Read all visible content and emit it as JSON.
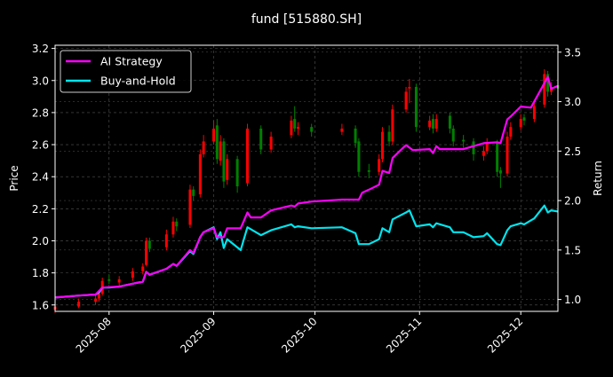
{
  "chart_data": {
    "type": "candlestick+line",
    "title": "fund [515880.SH]",
    "xlabel": "",
    "ylabel_left": "Price",
    "ylabel_right": "Return",
    "xlim": [
      "2025-07-16",
      "2025-12-12"
    ],
    "ylim_left": [
      1.56,
      3.22
    ],
    "ylim_right": [
      0.88,
      3.57
    ],
    "x_ticks": [
      {
        "date": "2025-08-01",
        "label": "2025-08"
      },
      {
        "date": "2025-09-01",
        "label": "2025-09"
      },
      {
        "date": "2025-10-01",
        "label": "2025-10"
      },
      {
        "date": "2025-11-01",
        "label": "2025-11"
      },
      {
        "date": "2025-12-01",
        "label": "2025-12"
      }
    ],
    "y_ticks_left": [
      "1.6",
      "1.8",
      "2.0",
      "2.2",
      "2.4",
      "2.6",
      "2.8",
      "3.0",
      "3.2"
    ],
    "y_ticks_right": [
      "1.0",
      "1.5",
      "2.0",
      "2.5",
      "3.0",
      "3.5"
    ],
    "grid": true,
    "legend_position": "top-left",
    "colors": {
      "up": "#ff0000",
      "down": "#008000",
      "strategy": "#ff00ff",
      "buy_hold": "#00e5ee",
      "background": "#000000",
      "grid": "#555555"
    },
    "candle_fields": [
      "date",
      "open",
      "high",
      "low",
      "close"
    ],
    "candles": [
      [
        "2025-07-16",
        1.57,
        1.61,
        1.55,
        1.59
      ],
      [
        "2025-07-23",
        1.59,
        1.64,
        1.58,
        1.62
      ],
      [
        "2025-07-28",
        1.62,
        1.66,
        1.6,
        1.64
      ],
      [
        "2025-07-29",
        1.64,
        1.69,
        1.62,
        1.67
      ],
      [
        "2025-07-30",
        1.67,
        1.77,
        1.66,
        1.75
      ],
      [
        "2025-08-01",
        1.76,
        1.79,
        1.73,
        1.75
      ],
      [
        "2025-08-04",
        1.74,
        1.78,
        1.72,
        1.76
      ],
      [
        "2025-08-08",
        1.77,
        1.83,
        1.75,
        1.81
      ],
      [
        "2025-08-11",
        1.81,
        1.86,
        1.79,
        1.84
      ],
      [
        "2025-08-12",
        1.85,
        2.02,
        1.84,
        2.0
      ],
      [
        "2025-08-13",
        2.0,
        2.02,
        1.93,
        1.95
      ],
      [
        "2025-08-18",
        1.96,
        2.07,
        1.94,
        2.04
      ],
      [
        "2025-08-20",
        2.04,
        2.15,
        2.02,
        2.12
      ],
      [
        "2025-08-21",
        2.12,
        2.14,
        2.06,
        2.09
      ],
      [
        "2025-08-25",
        2.1,
        2.35,
        2.08,
        2.32
      ],
      [
        "2025-08-26",
        2.32,
        2.34,
        2.25,
        2.28
      ],
      [
        "2025-08-28",
        2.29,
        2.57,
        2.27,
        2.54
      ],
      [
        "2025-08-29",
        2.54,
        2.66,
        2.52,
        2.62
      ],
      [
        "2025-09-01",
        2.62,
        2.75,
        2.6,
        2.7
      ],
      [
        "2025-09-02",
        2.72,
        2.76,
        2.48,
        2.51
      ],
      [
        "2025-09-03",
        2.5,
        2.66,
        2.47,
        2.62
      ],
      [
        "2025-09-04",
        2.62,
        2.64,
        2.33,
        2.37
      ],
      [
        "2025-09-05",
        2.38,
        2.54,
        2.35,
        2.51
      ],
      [
        "2025-09-08",
        2.51,
        2.53,
        2.3,
        2.34
      ],
      [
        "2025-09-11",
        2.36,
        2.73,
        2.34,
        2.7
      ],
      [
        "2025-09-15",
        2.7,
        2.72,
        2.54,
        2.57
      ],
      [
        "2025-09-18",
        2.57,
        2.68,
        2.55,
        2.65
      ],
      [
        "2025-09-24",
        2.66,
        2.78,
        2.64,
        2.75
      ],
      [
        "2025-09-25",
        2.76,
        2.84,
        2.68,
        2.7
      ],
      [
        "2025-09-26",
        2.7,
        2.74,
        2.66,
        2.71
      ],
      [
        "2025-09-30",
        2.71,
        2.73,
        2.65,
        2.68
      ],
      [
        "2025-10-09",
        2.68,
        2.73,
        2.66,
        2.7
      ],
      [
        "2025-10-13",
        2.7,
        2.72,
        2.58,
        2.61
      ],
      [
        "2025-10-14",
        2.62,
        2.64,
        2.4,
        2.43
      ],
      [
        "2025-10-17",
        2.44,
        2.48,
        2.39,
        2.43
      ],
      [
        "2025-10-20",
        2.43,
        2.54,
        2.41,
        2.51
      ],
      [
        "2025-10-21",
        2.51,
        2.71,
        2.49,
        2.68
      ],
      [
        "2025-10-23",
        2.68,
        2.72,
        2.59,
        2.62
      ],
      [
        "2025-10-24",
        2.62,
        2.85,
        2.6,
        2.82
      ],
      [
        "2025-10-28",
        2.82,
        2.96,
        2.8,
        2.93
      ],
      [
        "2025-10-29",
        2.95,
        3.01,
        2.86,
        2.96
      ],
      [
        "2025-10-31",
        2.96,
        2.98,
        2.68,
        2.71
      ],
      [
        "2025-11-04",
        2.71,
        2.78,
        2.69,
        2.75
      ],
      [
        "2025-11-05",
        2.76,
        2.79,
        2.67,
        2.7
      ],
      [
        "2025-11-06",
        2.7,
        2.79,
        2.68,
        2.76
      ],
      [
        "2025-11-10",
        2.78,
        2.8,
        2.67,
        2.7
      ],
      [
        "2025-11-11",
        2.7,
        2.72,
        2.59,
        2.62
      ],
      [
        "2025-11-14",
        2.63,
        2.66,
        2.58,
        2.62
      ],
      [
        "2025-11-17",
        2.62,
        2.64,
        2.5,
        2.54
      ],
      [
        "2025-11-20",
        2.53,
        2.59,
        2.5,
        2.56
      ],
      [
        "2025-11-21",
        2.56,
        2.64,
        2.54,
        2.61
      ],
      [
        "2025-11-24",
        2.61,
        2.63,
        2.4,
        2.43
      ],
      [
        "2025-11-25",
        2.44,
        2.46,
        2.33,
        2.42
      ],
      [
        "2025-11-27",
        2.42,
        2.68,
        2.4,
        2.65
      ],
      [
        "2025-11-28",
        2.65,
        2.74,
        2.63,
        2.71
      ],
      [
        "2025-12-01",
        2.71,
        2.79,
        2.69,
        2.76
      ],
      [
        "2025-12-02",
        2.77,
        2.79,
        2.72,
        2.75
      ],
      [
        "2025-12-05",
        2.76,
        2.87,
        2.74,
        2.84
      ],
      [
        "2025-12-08",
        2.85,
        3.07,
        2.83,
        3.04
      ],
      [
        "2025-12-09",
        3.04,
        3.06,
        2.9,
        2.93
      ],
      [
        "2025-12-10",
        2.93,
        2.99,
        2.91,
        2.96
      ],
      [
        "2025-12-12",
        2.97,
        2.99,
        2.92,
        2.95
      ]
    ],
    "series": [
      {
        "name": "AI Strategy",
        "axis": "right",
        "points": [
          [
            "2025-07-16",
            1.02
          ],
          [
            "2025-07-23",
            1.04
          ],
          [
            "2025-07-28",
            1.05
          ],
          [
            "2025-07-30",
            1.12
          ],
          [
            "2025-08-04",
            1.13
          ],
          [
            "2025-08-08",
            1.16
          ],
          [
            "2025-08-11",
            1.18
          ],
          [
            "2025-08-12",
            1.28
          ],
          [
            "2025-08-13",
            1.25
          ],
          [
            "2025-08-18",
            1.31
          ],
          [
            "2025-08-20",
            1.36
          ],
          [
            "2025-08-21",
            1.34
          ],
          [
            "2025-08-25",
            1.5
          ],
          [
            "2025-08-26",
            1.47
          ],
          [
            "2025-08-28",
            1.63
          ],
          [
            "2025-08-29",
            1.68
          ],
          [
            "2025-09-01",
            1.72
          ],
          [
            "2025-09-02",
            1.63
          ],
          [
            "2025-09-04",
            1.63
          ],
          [
            "2025-09-05",
            1.72
          ],
          [
            "2025-09-09",
            1.72
          ],
          [
            "2025-09-11",
            1.88
          ],
          [
            "2025-09-12",
            1.83
          ],
          [
            "2025-09-15",
            1.83
          ],
          [
            "2025-09-18",
            1.9
          ],
          [
            "2025-09-24",
            1.95
          ],
          [
            "2025-09-25",
            1.94
          ],
          [
            "2025-09-26",
            1.97
          ],
          [
            "2025-09-30",
            1.99
          ],
          [
            "2025-10-09",
            2.01
          ],
          [
            "2025-10-14",
            2.01
          ],
          [
            "2025-10-15",
            2.08
          ],
          [
            "2025-10-17",
            2.11
          ],
          [
            "2025-10-20",
            2.16
          ],
          [
            "2025-10-21",
            2.3
          ],
          [
            "2025-10-23",
            2.28
          ],
          [
            "2025-10-24",
            2.43
          ],
          [
            "2025-10-27",
            2.53
          ],
          [
            "2025-10-28",
            2.56
          ],
          [
            "2025-10-30",
            2.51
          ],
          [
            "2025-11-04",
            2.52
          ],
          [
            "2025-11-05",
            2.48
          ],
          [
            "2025-11-06",
            2.55
          ],
          [
            "2025-11-07",
            2.52
          ],
          [
            "2025-11-14",
            2.52
          ],
          [
            "2025-11-20",
            2.58
          ],
          [
            "2025-11-24",
            2.59
          ],
          [
            "2025-11-25",
            2.58
          ],
          [
            "2025-11-27",
            2.82
          ],
          [
            "2025-11-28",
            2.85
          ],
          [
            "2025-12-01",
            2.95
          ],
          [
            "2025-12-04",
            2.94
          ],
          [
            "2025-12-09",
            3.25
          ],
          [
            "2025-12-10",
            3.13
          ],
          [
            "2025-12-12",
            3.16
          ]
        ]
      },
      {
        "name": "Buy-and-Hold",
        "axis": "right",
        "points": [
          [
            "2025-07-16",
            1.02
          ],
          [
            "2025-07-23",
            1.04
          ],
          [
            "2025-07-28",
            1.05
          ],
          [
            "2025-07-29",
            1.07
          ],
          [
            "2025-07-30",
            1.12
          ],
          [
            "2025-08-01",
            1.12
          ],
          [
            "2025-08-04",
            1.13
          ],
          [
            "2025-08-08",
            1.16
          ],
          [
            "2025-08-11",
            1.18
          ],
          [
            "2025-08-12",
            1.28
          ],
          [
            "2025-08-13",
            1.25
          ],
          [
            "2025-08-18",
            1.31
          ],
          [
            "2025-08-20",
            1.36
          ],
          [
            "2025-08-21",
            1.34
          ],
          [
            "2025-08-25",
            1.49
          ],
          [
            "2025-08-26",
            1.46
          ],
          [
            "2025-08-28",
            1.63
          ],
          [
            "2025-08-29",
            1.68
          ],
          [
            "2025-09-01",
            1.73
          ],
          [
            "2025-09-02",
            1.61
          ],
          [
            "2025-09-03",
            1.68
          ],
          [
            "2025-09-04",
            1.52
          ],
          [
            "2025-09-05",
            1.61
          ],
          [
            "2025-09-09",
            1.5
          ],
          [
            "2025-09-11",
            1.73
          ],
          [
            "2025-09-15",
            1.65
          ],
          [
            "2025-09-18",
            1.7
          ],
          [
            "2025-09-24",
            1.76
          ],
          [
            "2025-09-25",
            1.73
          ],
          [
            "2025-09-26",
            1.74
          ],
          [
            "2025-09-30",
            1.72
          ],
          [
            "2025-10-09",
            1.73
          ],
          [
            "2025-10-13",
            1.67
          ],
          [
            "2025-10-14",
            1.56
          ],
          [
            "2025-10-17",
            1.56
          ],
          [
            "2025-10-20",
            1.61
          ],
          [
            "2025-10-21",
            1.72
          ],
          [
            "2025-10-23",
            1.68
          ],
          [
            "2025-10-24",
            1.81
          ],
          [
            "2025-10-28",
            1.88
          ],
          [
            "2025-10-29",
            1.9
          ],
          [
            "2025-10-31",
            1.74
          ],
          [
            "2025-11-04",
            1.76
          ],
          [
            "2025-11-05",
            1.73
          ],
          [
            "2025-11-06",
            1.77
          ],
          [
            "2025-11-10",
            1.73
          ],
          [
            "2025-11-11",
            1.68
          ],
          [
            "2025-11-14",
            1.68
          ],
          [
            "2025-11-17",
            1.63
          ],
          [
            "2025-11-20",
            1.64
          ],
          [
            "2025-11-21",
            1.67
          ],
          [
            "2025-11-24",
            1.56
          ],
          [
            "2025-11-25",
            1.55
          ],
          [
            "2025-11-27",
            1.7
          ],
          [
            "2025-11-28",
            1.74
          ],
          [
            "2025-12-01",
            1.77
          ],
          [
            "2025-12-02",
            1.76
          ],
          [
            "2025-12-05",
            1.82
          ],
          [
            "2025-12-08",
            1.95
          ],
          [
            "2025-12-09",
            1.88
          ],
          [
            "2025-12-10",
            1.9
          ],
          [
            "2025-12-12",
            1.89
          ]
        ]
      }
    ]
  }
}
